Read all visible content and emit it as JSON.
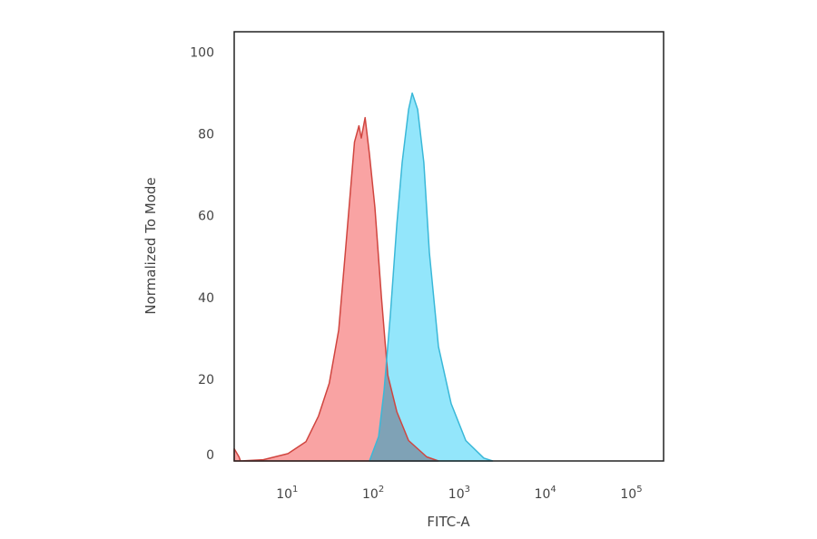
{
  "chart_data": {
    "type": "area",
    "title": "",
    "xlabel": "FITC-A",
    "ylabel": "Normalized To Mode",
    "xscale": "log",
    "xlim": [
      2.2,
      215000
    ],
    "ylim": [
      0,
      105
    ],
    "grid": false,
    "legend": "none",
    "yticks": [
      0,
      20,
      40,
      60,
      80,
      100
    ],
    "xticks": [
      {
        "value": 10,
        "base": "10",
        "exp": "1"
      },
      {
        "value": 100,
        "base": "10",
        "exp": "2"
      },
      {
        "value": 1000,
        "base": "10",
        "exp": "3"
      },
      {
        "value": 10000,
        "base": "10",
        "exp": "4"
      },
      {
        "value": 100000,
        "base": "10",
        "exp": "5"
      }
    ],
    "series": [
      {
        "color_fill": "#f9a3a3",
        "color_line": "#d0453f",
        "x": [
          2.2,
          2.5,
          2.6,
          4.8,
          9.3,
          15,
          21,
          28,
          36,
          43,
          48,
          55,
          62,
          66,
          73,
          82,
          95,
          113,
          134,
          171,
          234,
          380,
          520
        ],
        "y": [
          3,
          1,
          0,
          0.3,
          1.8,
          4.7,
          11,
          19,
          32,
          51,
          63,
          78,
          82,
          79,
          84,
          75,
          62,
          40,
          21,
          12,
          5,
          1,
          0
        ]
      },
      {
        "color_fill": "#93e6fb",
        "color_line": "#3ab8d8",
        "x": [
          82,
          105,
          121,
          144,
          171,
          197,
          234,
          258,
          298,
          352,
          408,
          520,
          730,
          1080,
          1750,
          2220
        ],
        "y": [
          0,
          6,
          17,
          36,
          58,
          73,
          86,
          90,
          86,
          73,
          51,
          28,
          14,
          5,
          0.7,
          0
        ]
      }
    ],
    "overlap_color": "#7fa2b6"
  }
}
